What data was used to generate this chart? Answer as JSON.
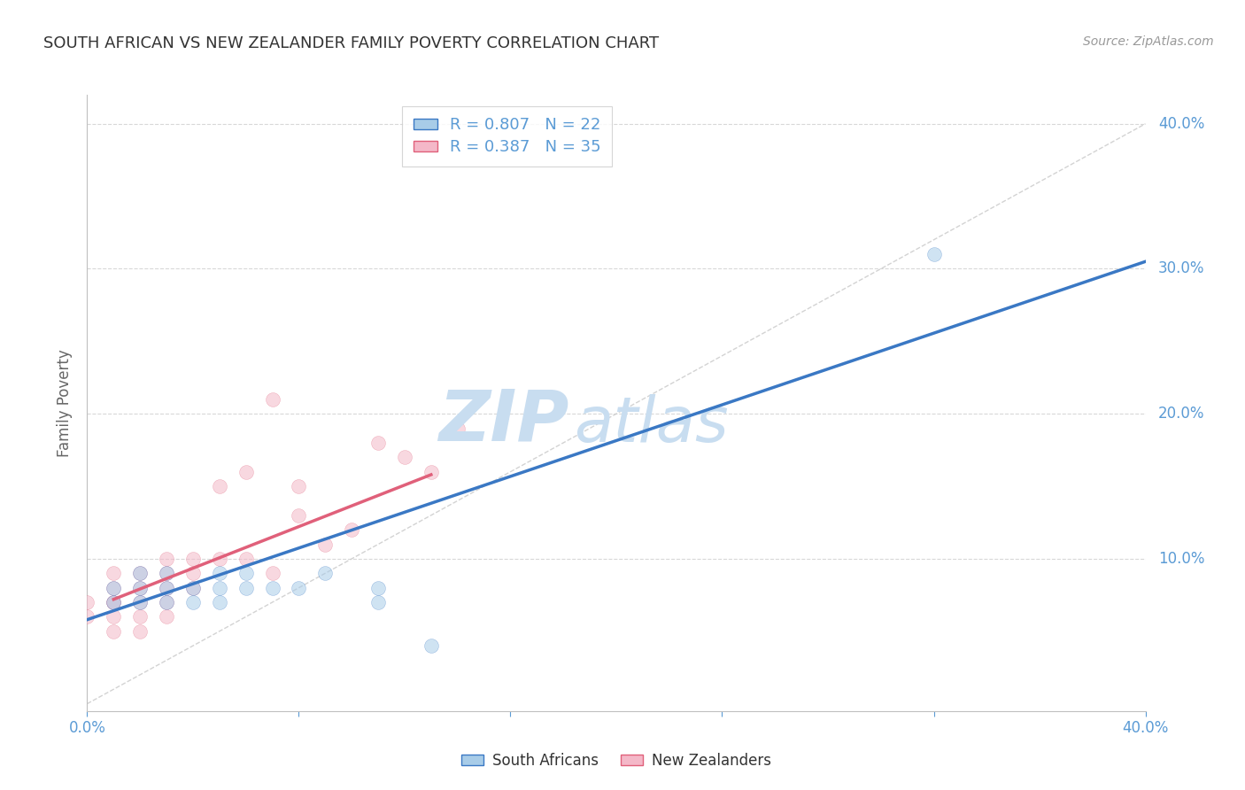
{
  "title": "SOUTH AFRICAN VS NEW ZEALANDER FAMILY POVERTY CORRELATION CHART",
  "source_text": "Source: ZipAtlas.com",
  "ylabel": "Family Poverty",
  "xlim": [
    0.0,
    0.4
  ],
  "ylim": [
    -0.005,
    0.42
  ],
  "ytick_vals": [
    0.1,
    0.2,
    0.3,
    0.4
  ],
  "ytick_labels": [
    "10.0%",
    "20.0%",
    "30.0%",
    "40.0%"
  ],
  "blue_R": 0.807,
  "blue_N": 22,
  "pink_R": 0.387,
  "pink_N": 35,
  "blue_color": "#a8cce8",
  "pink_color": "#f4b8c8",
  "blue_line_color": "#3a78c4",
  "pink_line_color": "#e0607a",
  "ref_line_color": "#c8c8c8",
  "grid_color": "#d8d8d8",
  "axis_color": "#c0c0c0",
  "tick_color": "#5b9bd5",
  "title_color": "#333333",
  "legend_R_color": "#5b9bd5",
  "blue_scatter_x": [
    0.01,
    0.01,
    0.02,
    0.02,
    0.02,
    0.03,
    0.03,
    0.03,
    0.04,
    0.04,
    0.05,
    0.05,
    0.05,
    0.06,
    0.06,
    0.07,
    0.08,
    0.09,
    0.11,
    0.11,
    0.32,
    0.13
  ],
  "blue_scatter_y": [
    0.07,
    0.08,
    0.07,
    0.08,
    0.09,
    0.07,
    0.08,
    0.09,
    0.07,
    0.08,
    0.07,
    0.08,
    0.09,
    0.08,
    0.09,
    0.08,
    0.08,
    0.09,
    0.07,
    0.08,
    0.31,
    0.04
  ],
  "pink_scatter_x": [
    0.0,
    0.0,
    0.01,
    0.01,
    0.01,
    0.01,
    0.01,
    0.01,
    0.02,
    0.02,
    0.02,
    0.02,
    0.02,
    0.03,
    0.03,
    0.03,
    0.03,
    0.03,
    0.04,
    0.04,
    0.04,
    0.05,
    0.05,
    0.06,
    0.06,
    0.07,
    0.07,
    0.08,
    0.08,
    0.09,
    0.1,
    0.11,
    0.12,
    0.13,
    0.14
  ],
  "pink_scatter_y": [
    0.06,
    0.07,
    0.05,
    0.06,
    0.07,
    0.07,
    0.08,
    0.09,
    0.05,
    0.06,
    0.07,
    0.08,
    0.09,
    0.06,
    0.07,
    0.08,
    0.09,
    0.1,
    0.08,
    0.09,
    0.1,
    0.1,
    0.15,
    0.1,
    0.16,
    0.09,
    0.21,
    0.13,
    0.15,
    0.11,
    0.12,
    0.18,
    0.17,
    0.16,
    0.19
  ],
  "blue_line_x": [
    0.0,
    0.4
  ],
  "blue_line_y": [
    0.058,
    0.305
  ],
  "pink_line_x": [
    0.01,
    0.13
  ],
  "pink_line_y": [
    0.072,
    0.158
  ],
  "ref_line_x": [
    0.0,
    0.4
  ],
  "ref_line_y": [
    0.0,
    0.4
  ],
  "watermark_zip": "ZIP",
  "watermark_atlas": "atlas",
  "watermark_color": "#c8ddf0",
  "marker_size": 130,
  "marker_alpha": 0.55
}
